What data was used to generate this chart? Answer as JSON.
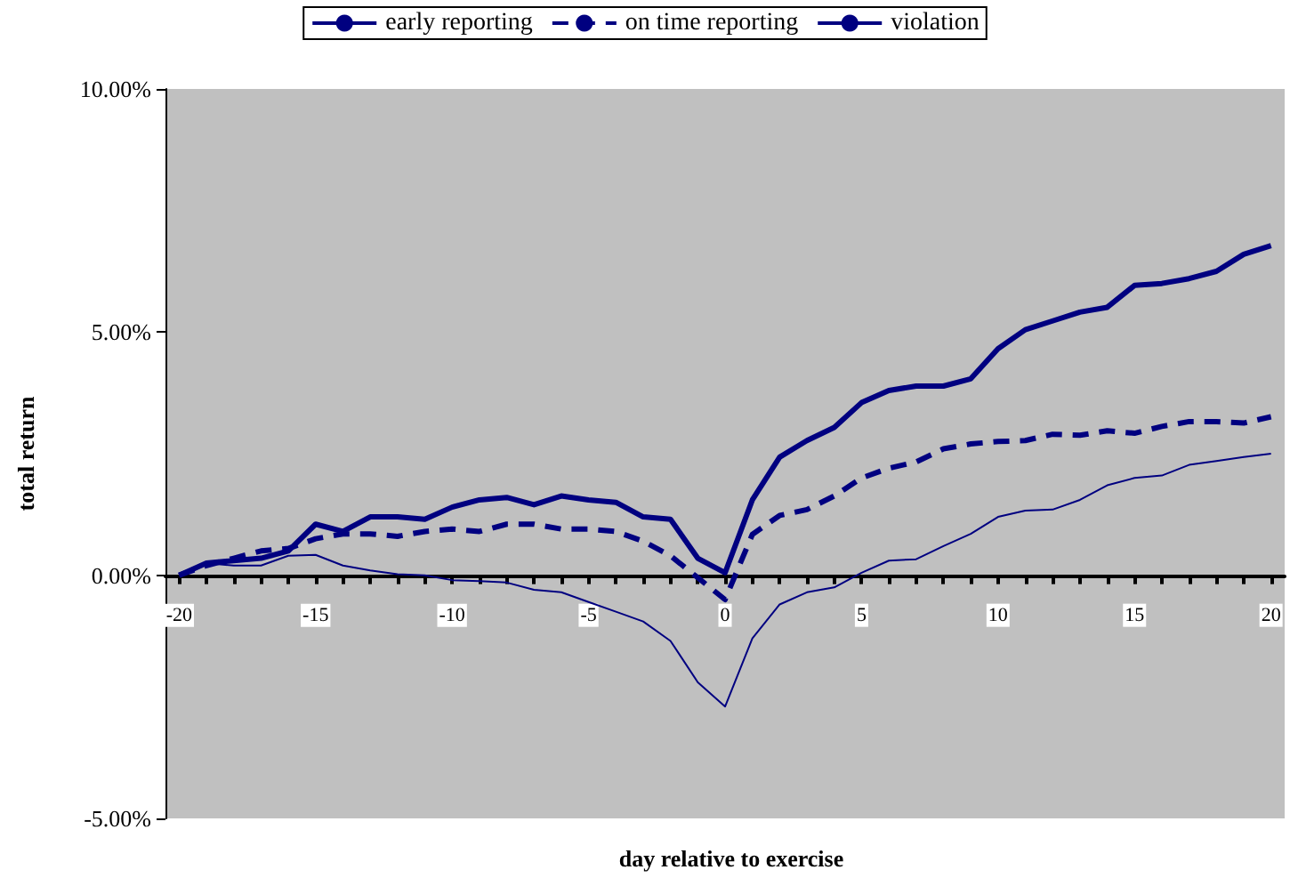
{
  "chart_data": {
    "type": "line",
    "xlabel": "day relative to exercise",
    "ylabel": "total return",
    "categories": [
      "-20",
      null,
      null,
      null,
      null,
      "-15",
      null,
      null,
      null,
      null,
      "-10",
      null,
      null,
      null,
      null,
      "-5",
      null,
      null,
      null,
      null,
      "0",
      null,
      null,
      null,
      null,
      "5",
      null,
      null,
      null,
      null,
      "10",
      null,
      null,
      null,
      null,
      "15",
      null,
      null,
      null,
      null,
      "20"
    ],
    "series": [
      {
        "name": "early reporting",
        "color": "#000080",
        "line_style": "solid",
        "values": [
          0,
          0.25,
          0.2,
          0.2,
          0.4,
          0.42,
          0.2,
          0.1,
          0.02,
          0,
          -0.1,
          -0.12,
          -0.15,
          -0.3,
          -0.35,
          -0.55,
          -0.75,
          -0.95,
          -1.35,
          -2.2,
          -2.7,
          -1.3,
          -0.6,
          -0.35,
          -0.25,
          0.05,
          0.3,
          0.33,
          0.6,
          0.85,
          1.2,
          1.33,
          1.35,
          1.55,
          1.85,
          2.0,
          2.05,
          2.27,
          2.35,
          2.43,
          2.5
        ]
      },
      {
        "name": "on time reporting",
        "color": "#000080",
        "line_style": "dashed",
        "values": [
          0,
          0.2,
          0.35,
          0.5,
          0.55,
          0.75,
          0.85,
          0.85,
          0.8,
          0.9,
          0.95,
          0.9,
          1.05,
          1.05,
          0.95,
          0.95,
          0.9,
          0.7,
          0.4,
          -0.05,
          -0.5,
          0.84,
          1.23,
          1.35,
          1.63,
          2.0,
          2.2,
          2.33,
          2.6,
          2.7,
          2.75,
          2.77,
          2.9,
          2.88,
          2.97,
          2.92,
          3.06,
          3.16,
          3.16,
          3.13,
          3.26
        ]
      },
      {
        "name": "violation",
        "color": "#000080",
        "line_style": "solid",
        "values": [
          0,
          0.25,
          0.3,
          0.35,
          0.5,
          1.05,
          0.9,
          1.2,
          1.2,
          1.15,
          1.4,
          1.55,
          1.6,
          1.45,
          1.63,
          1.55,
          1.5,
          1.2,
          1.15,
          0.35,
          0.05,
          1.55,
          2.43,
          2.77,
          3.04,
          3.55,
          3.8,
          3.89,
          3.89,
          4.04,
          4.66,
          5.05,
          5.23,
          5.41,
          5.51,
          5.96,
          6.0,
          6.1,
          6.25,
          6.6,
          6.78
        ]
      }
    ],
    "ylim": [
      -5,
      10
    ],
    "yticks": [
      {
        "value": -5,
        "label": "-5.00%"
      },
      {
        "value": 0,
        "label": "0.00%"
      },
      {
        "value": 5,
        "label": "5.00%"
      },
      {
        "value": 10,
        "label": "10.00%"
      }
    ],
    "grid": false,
    "legend": "top",
    "marker": "none"
  }
}
